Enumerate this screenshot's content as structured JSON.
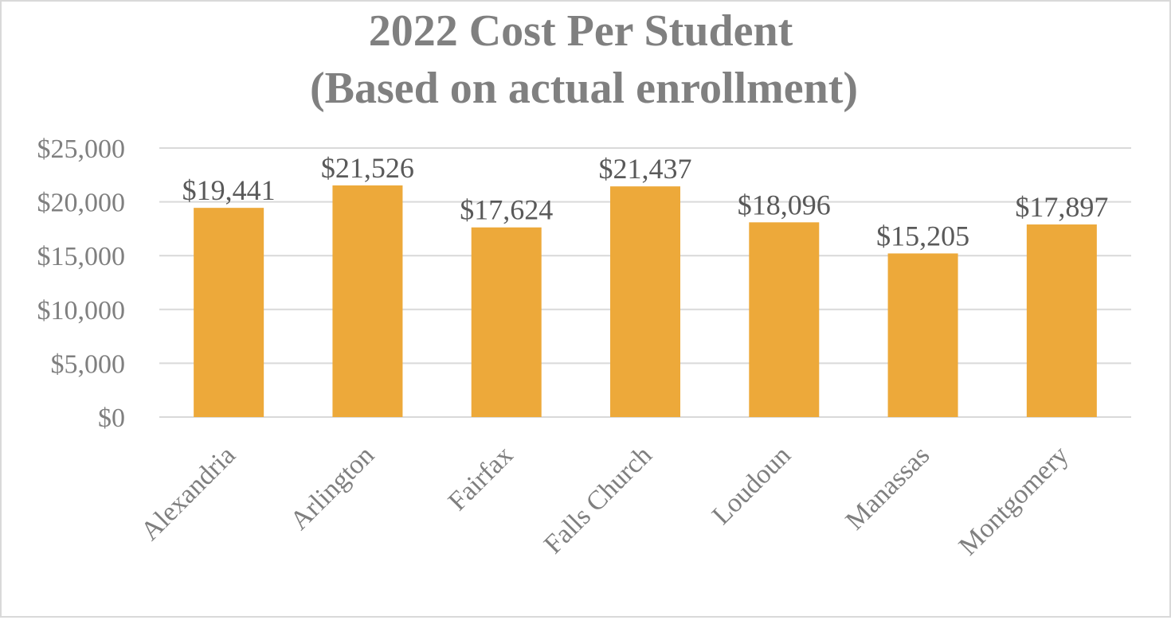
{
  "chart_data": {
    "type": "bar",
    "title_lines": [
      "2022 Cost Per Student",
      "(Based on actual enrollment)"
    ],
    "categories": [
      "Alexandria",
      "Arlington",
      "Fairfax",
      "Falls Church",
      "Loudoun",
      "Manassas",
      "Montgomery"
    ],
    "values": [
      19441,
      21526,
      17624,
      21437,
      18096,
      15205,
      17897
    ],
    "data_labels": [
      "$19,441",
      "$21,526",
      "$17,624",
      "$21,437",
      "$18,096",
      "$15,205",
      "$17,897"
    ],
    "y_ticks": [
      0,
      5000,
      10000,
      15000,
      20000,
      25000
    ],
    "y_tick_labels": [
      "$0",
      "$5,000",
      "$10,000",
      "$15,000",
      "$20,000",
      "$25,000"
    ],
    "ylim": [
      0,
      25000
    ],
    "bar_color": "#EDA93A",
    "grid": true,
    "legend": "none"
  }
}
